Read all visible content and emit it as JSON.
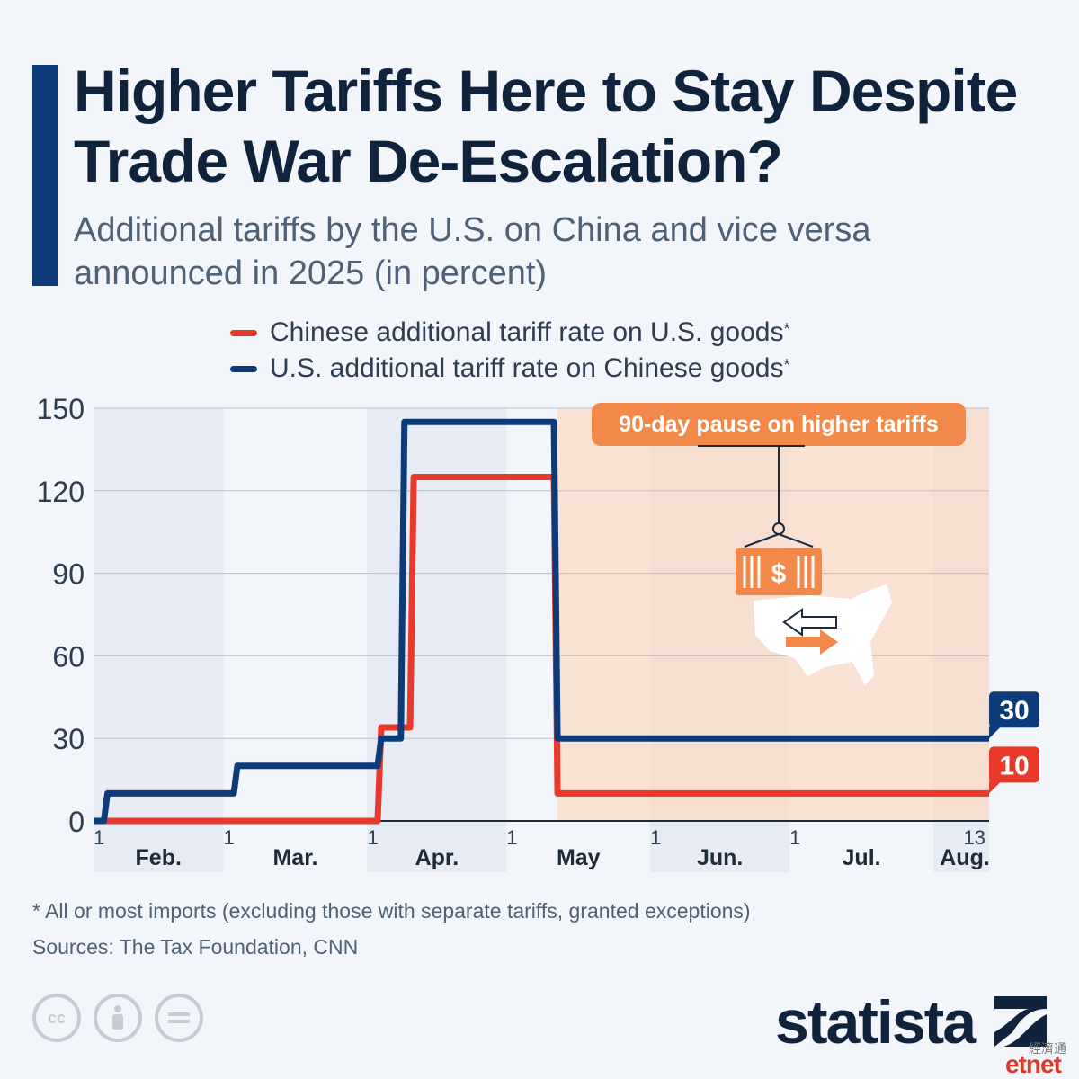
{
  "title": "Higher Tariffs Here to Stay Despite Trade War De-Escalation?",
  "subtitle": "Additional tariffs by the U.S. on China and vice versa announced in 2025 (in percent)",
  "legend": [
    {
      "label": "Chinese additional tariff rate on U.S. goods",
      "sup": "*",
      "color": "#e8392b"
    },
    {
      "label": "U.S. additional tariff rate on Chinese goods",
      "sup": "*",
      "color": "#0d3b7a"
    }
  ],
  "annotation": {
    "text": "90-day pause on higher tariffs",
    "color": "#f2894a",
    "icon": "shipping-container-dollar-icon",
    "map_icon": "us-map-icon"
  },
  "end_labels": {
    "us": "30",
    "china": "10"
  },
  "footnote": "* All or most imports (excluding those with separate tariffs, granted exceptions)",
  "sources": "Sources: The Tax Foundation, CNN",
  "brand": {
    "name": "statista",
    "watermark_cn": "經濟通",
    "watermark": "etnet"
  },
  "chart_data": {
    "type": "line",
    "step": true,
    "x_unit": "date (2025)",
    "xlim": [
      "2025-02-01",
      "2025-08-13"
    ],
    "ylim": [
      0,
      150
    ],
    "y_ticks": [
      0,
      30,
      60,
      90,
      120,
      150
    ],
    "grid": true,
    "legend_position": "top",
    "month_ticks": [
      {
        "date": "2025-02-01",
        "day": "1",
        "month": "Feb."
      },
      {
        "date": "2025-03-01",
        "day": "1",
        "month": "Mar."
      },
      {
        "date": "2025-04-01",
        "day": "1",
        "month": "Apr."
      },
      {
        "date": "2025-05-01",
        "day": "1",
        "month": "May"
      },
      {
        "date": "2025-06-01",
        "day": "1",
        "month": "Jun."
      },
      {
        "date": "2025-07-01",
        "day": "1",
        "month": "Jul."
      },
      {
        "date": "2025-08-13",
        "day": "13",
        "month": "Aug."
      }
    ],
    "shaded_months": [
      "2025-02",
      "2025-04",
      "2025-06",
      "2025-08"
    ],
    "highlight_range": [
      "2025-05-12",
      "2025-08-13"
    ],
    "series": [
      {
        "name": "Chinese additional tariff rate on U.S. goods",
        "color": "#e8392b",
        "points": [
          [
            "2025-02-01",
            0
          ],
          [
            "2025-04-04",
            34
          ],
          [
            "2025-04-11",
            125
          ],
          [
            "2025-05-12",
            10
          ],
          [
            "2025-08-13",
            10
          ]
        ]
      },
      {
        "name": "U.S. additional tariff rate on Chinese goods",
        "color": "#0d3b7a",
        "points": [
          [
            "2025-02-01",
            0
          ],
          [
            "2025-02-04",
            10
          ],
          [
            "2025-03-04",
            20
          ],
          [
            "2025-04-04",
            30
          ],
          [
            "2025-04-09",
            145
          ],
          [
            "2025-05-12",
            30
          ],
          [
            "2025-08-13",
            30
          ]
        ]
      }
    ]
  }
}
